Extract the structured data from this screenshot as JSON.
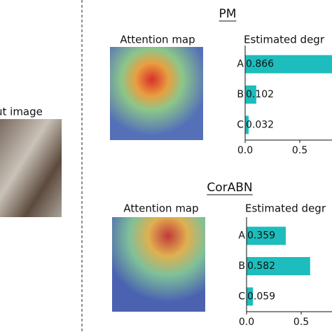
{
  "input_caption": "ut image",
  "chart_data": [
    {
      "type": "bar",
      "orientation": "horizontal",
      "heading": "PM",
      "image_caption": "Attention map",
      "title": "Estimated degr",
      "categories": [
        "A",
        "B",
        "C"
      ],
      "values": [
        0.866,
        0.102,
        0.032
      ],
      "color": "#1dbdbd",
      "xlim": [
        0,
        1
      ],
      "xticks": [
        {
          "value": 0,
          "label": "0.0"
        },
        0.5
      ]
    },
    {
      "type": "bar",
      "orientation": "horizontal",
      "heading": "CorABN",
      "image_caption": "Attention map",
      "title": "Estimated degr",
      "categories": [
        "A",
        "B",
        "C"
      ],
      "values": [
        0.359,
        0.582,
        0.059
      ],
      "color": "#1dbdbd",
      "xlim": [
        0,
        1
      ],
      "xticks": [
        {
          "value": 0,
          "label": "0.0"
        },
        0.5
      ]
    }
  ]
}
